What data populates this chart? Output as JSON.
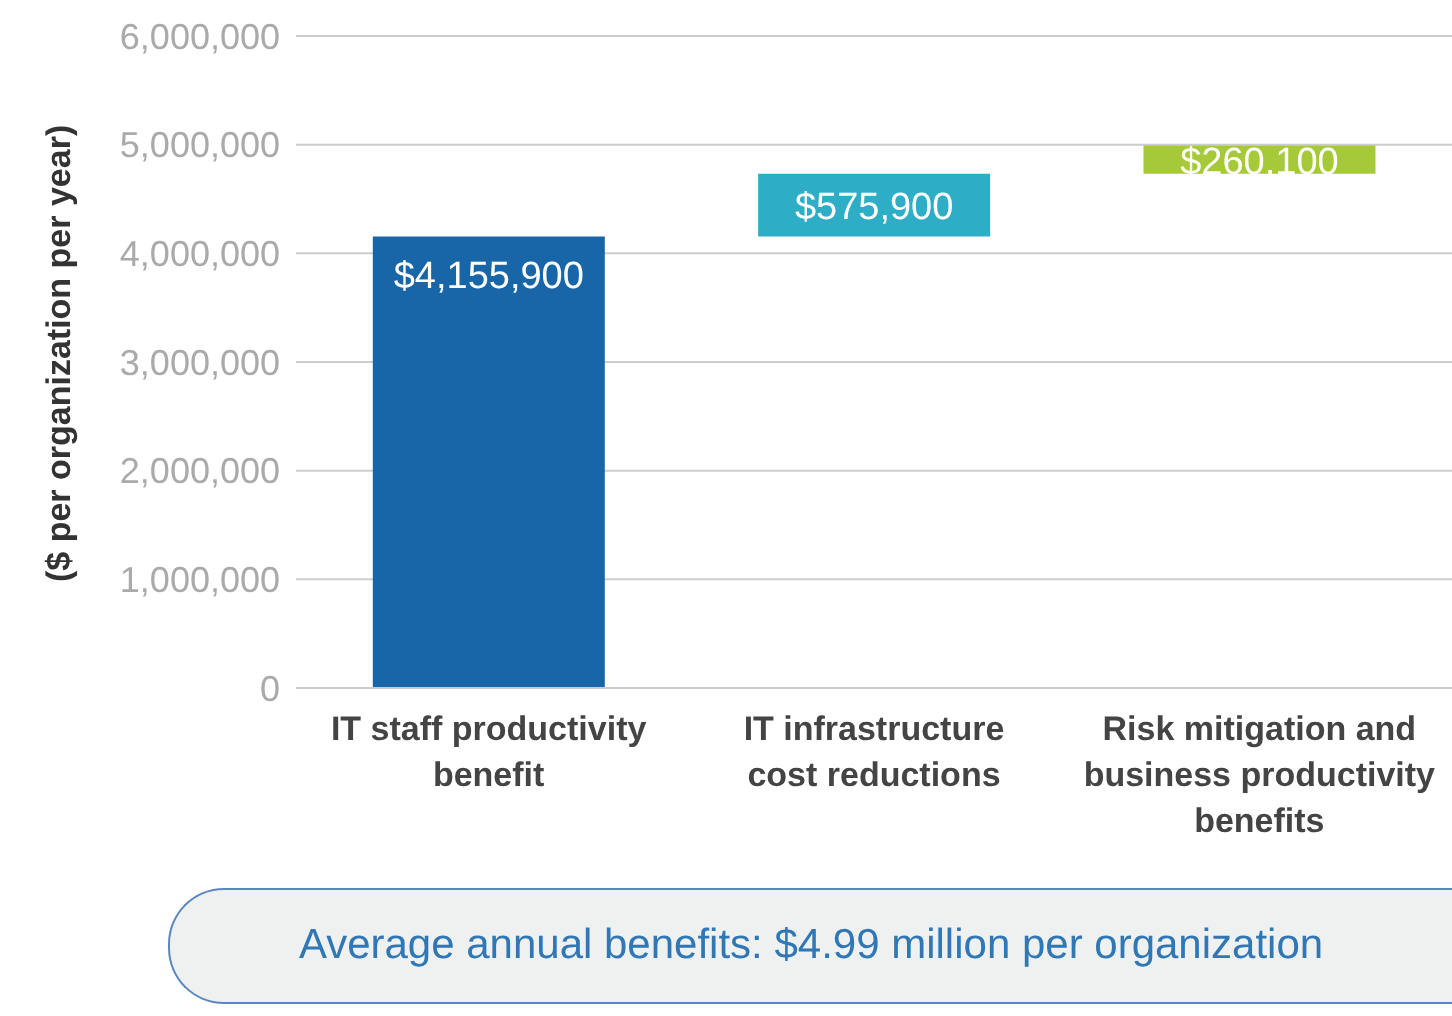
{
  "chart_data": {
    "type": "bar",
    "ylabel": "($ per organization per year)",
    "categories": [
      "IT staff productivity benefit",
      "IT infrastructure cost reductions",
      "Risk mitigation and business productivity benefits"
    ],
    "values": [
      4155900,
      575900,
      260100
    ],
    "base": [
      0,
      4155900,
      4731800
    ],
    "colors": [
      "#1866a8",
      "#2eadc6",
      "#a6c93a"
    ],
    "value_labels": [
      "$4,155,900",
      "$575,900",
      "$260,100"
    ],
    "ylim": [
      0,
      6000000
    ],
    "yticks": [
      0,
      {
        "value": 1000000,
        "label": "1,000,000"
      },
      {
        "value": 2000000,
        "label": "2,000,000"
      },
      {
        "value": 3000000,
        "label": "3,000,000"
      },
      {
        "value": 4000000,
        "label": "4,000,000"
      },
      {
        "value": 5000000,
        "label": "5,000,000"
      },
      {
        "value": 6000000,
        "label": "6,000,000"
      }
    ],
    "grid": "y",
    "annotations": [
      "Average annual benefits: $4.99 million per organization"
    ]
  }
}
